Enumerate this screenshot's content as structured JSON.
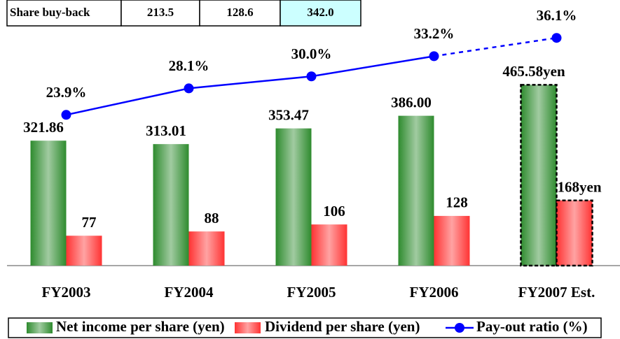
{
  "table": {
    "rows": [
      [
        "Share buy-back",
        "213.5",
        "128.6",
        "342.0"
      ]
    ],
    "highlight_column": 3,
    "highlight_color": "#ccffff"
  },
  "chart_data": {
    "type": "bar",
    "categories": [
      "FY2003",
      "FY2004",
      "FY2005",
      "FY2006",
      "FY2007 Est."
    ],
    "series": [
      {
        "name": "Net income per share (yen)",
        "color": "#2e8b2e",
        "values": [
          321.86,
          313.01,
          353.47,
          386.0,
          465.58
        ],
        "value_labels": [
          "321.86",
          "313.01",
          "353.47",
          "386.00",
          "465.58yen"
        ]
      },
      {
        "name": "Dividend per share (yen)",
        "color": "#ff3333",
        "values": [
          77,
          88,
          106,
          128,
          168
        ],
        "value_labels": [
          "77",
          "88",
          "106",
          "128",
          "168yen"
        ]
      },
      {
        "name": "Pay-out ratio (%)",
        "type": "line",
        "axis": "y2",
        "color": "#0000ff",
        "values": [
          23.9,
          28.1,
          30.0,
          33.2,
          36.1
        ],
        "value_labels": [
          "23.9%",
          "28.1%",
          "30.0%",
          "33.2%",
          "36.1%"
        ]
      }
    ],
    "ylim": [
      0,
      650
    ],
    "y2lim": [
      0,
      40
    ],
    "dash_from_index": 3,
    "estimate_outline_index": 4,
    "legend": "bottom"
  }
}
